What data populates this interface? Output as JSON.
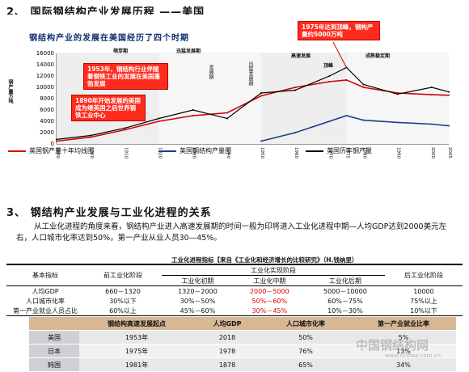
{
  "section2": {
    "title": "2、 国际钢结构产业发展历程 ——美国",
    "chart_subtitle": "钢结构产业的发展在美国经历了四个时期",
    "callout_peak": "1975年达到顶峰，钢构产量约5000万吨",
    "callout_1953": "1953年，钢结构行业伴随着钢铁工业的发展在美国蓬勃发展",
    "callout_1890": "1890年开始发展的美国成为继英国之后世界钢铁工业中心",
    "phases": [
      "萌芽期",
      "迅猛发展期",
      "高速发展",
      "成熟稳定期"
    ],
    "phase_notes": [
      "发展期",
      "迅猛发展期"
    ],
    "peak_label": "顶峰",
    "ylabel": "钢产量万吨",
    "legend": [
      "美国钢产量十年均线图",
      "美国钢结构产量图",
      "美国历年钢产量"
    ]
  },
  "chart_data": {
    "type": "line",
    "ylim": [
      0,
      16000
    ],
    "yticks": [
      "16000",
      "14000",
      "12000",
      "10000",
      "8000",
      "6000",
      "4000",
      "2000",
      "0"
    ],
    "x": [
      1890,
      1900,
      1910,
      1920,
      1930,
      1940,
      1950,
      1960,
      1970,
      1975,
      1980,
      1990,
      2000,
      2005
    ],
    "series": [
      {
        "name": "美国钢产量十年均线图",
        "color": "#d40000",
        "values": [
          500,
          1200,
          2500,
          4000,
          5000,
          5500,
          8500,
          10000,
          11000,
          11300,
          10000,
          9000,
          8700,
          8600
        ]
      },
      {
        "name": "美国钢结构产量图",
        "color": "#1f3b8c",
        "values": [
          null,
          null,
          null,
          null,
          null,
          null,
          500,
          2000,
          4000,
          5000,
          4200,
          3800,
          3500,
          3200
        ]
      },
      {
        "name": "美国历年钢产量",
        "color": "#000000",
        "values": [
          800,
          1500,
          2800,
          4500,
          6000,
          4500,
          9000,
          9500,
          12000,
          13500,
          10500,
          8800,
          10000,
          9200
        ]
      }
    ]
  },
  "section3": {
    "title": "3、 钢结构产业发展与工业化进程的关系",
    "paragraph": "从工业化进程的角度来看，钢结构产业进入高速发展期的时间一般为印将进入工业化进程中期—人均GDP达到2000美元左右，人口城市化率达到50%，第一产业从业人员30—45%。",
    "table1_caption": "工业化进程指标【来自《工业化和经济增长的比较研究》（H.钱纳里）",
    "table1": {
      "head_basic": "基本指标",
      "head_pre": "前工业化阶段",
      "head_realize": "工业化实现阶段",
      "head_stages": [
        "工业化初期",
        "工业化中期",
        "工业化后期"
      ],
      "head_post": "后工业化阶段",
      "rows": [
        [
          "人均GDP",
          "660－1320",
          "1320－2000",
          "2000－5000",
          "5000－10000",
          "10000"
        ],
        [
          "人口城市化率",
          "30%以下",
          "30%－50%",
          "50%－60%",
          "60%－75%",
          "75%以上"
        ],
        [
          "第一产业就业人员占比",
          "60%以上",
          "45%－60%",
          "30%－45%",
          "10%－30%",
          "10%以下"
        ]
      ]
    },
    "table2": {
      "headers": [
        "",
        "钢结构高速发展起点",
        "人均GDP",
        "人口城市化率",
        "第一产业就业比率"
      ],
      "rows": [
        [
          "美国",
          "1953年",
          "2018",
          "50%",
          "5%"
        ],
        [
          "日本",
          "1975年",
          "1978",
          "76%",
          "13%"
        ],
        [
          "韩国",
          "1981年",
          "1878",
          "65%",
          "34%"
        ]
      ]
    },
    "watermark": "中国钢结构网",
    "watermark_url": "www.ccmsa.com.cn"
  }
}
